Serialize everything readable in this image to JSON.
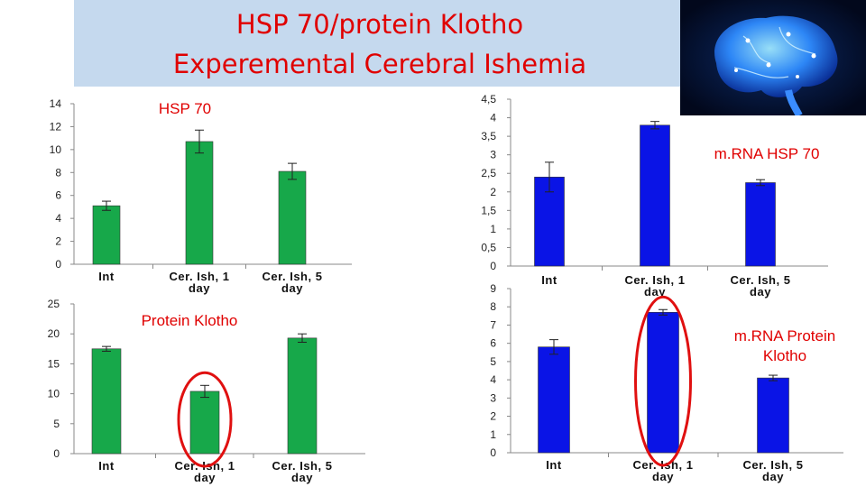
{
  "header": {
    "title_line1": "HSP 70/protein Klotho",
    "title_line2": "Experemental Cerebral Ishemia"
  },
  "image": {
    "icon": "glowing-brain-network-illustration"
  },
  "colors": {
    "green": "#17a84a",
    "blue": "#0a14e6",
    "title": "#e00000",
    "highlight": "#e01010"
  },
  "chart_data": [
    {
      "type": "bar",
      "title": "HSP 70",
      "categories": [
        [
          "Int"
        ],
        [
          "Cer. Ish, 1",
          "day"
        ],
        [
          "Cer. Ish, 5",
          "day"
        ]
      ],
      "values": [
        5.1,
        10.7,
        8.1
      ],
      "errors": [
        0.4,
        1.0,
        0.7
      ],
      "ylim": [
        0,
        14
      ],
      "yticks": [
        "0",
        "2",
        "4",
        "6",
        "8",
        "10",
        "12",
        "14"
      ],
      "ytick_values": [
        0,
        2,
        4,
        6,
        8,
        10,
        12,
        14
      ],
      "color": "green",
      "highlight_index": null
    },
    {
      "type": "bar",
      "title": "Protein Klotho",
      "categories": [
        [
          "Int"
        ],
        [
          "Cer. Ish, 1",
          "day"
        ],
        [
          "Cer. Ish, 5",
          "day"
        ]
      ],
      "values": [
        17.5,
        10.4,
        19.3
      ],
      "errors": [
        0.4,
        1.0,
        0.7
      ],
      "ylim": [
        0,
        25
      ],
      "yticks": [
        "0",
        "5",
        "10",
        "15",
        "20",
        "25"
      ],
      "ytick_values": [
        0,
        5,
        10,
        15,
        20,
        25
      ],
      "color": "green",
      "highlight_index": 1
    },
    {
      "type": "bar",
      "title": "m.RNA HSP 70",
      "categories": [
        [
          "Int"
        ],
        [
          "Cer. Ish, 1",
          "day"
        ],
        [
          "Cer. Ish, 5",
          "day"
        ]
      ],
      "values": [
        2.4,
        3.8,
        2.25
      ],
      "errors": [
        0.4,
        0.1,
        0.08
      ],
      "ylim": [
        0,
        4.5
      ],
      "yticks": [
        "0",
        "0,5",
        "1",
        "1,5",
        "2",
        "2,5",
        "3",
        "3,5",
        "4",
        "4,5"
      ],
      "ytick_values": [
        0,
        0.5,
        1,
        1.5,
        2,
        2.5,
        3,
        3.5,
        4,
        4.5
      ],
      "color": "blue",
      "highlight_index": null
    },
    {
      "type": "bar",
      "title": "m.RNA Protein Klotho",
      "categories": [
        [
          "Int"
        ],
        [
          "Cer. Ish, 1",
          "day"
        ],
        [
          "Cer. Ish, 5",
          "day"
        ]
      ],
      "values": [
        5.8,
        7.7,
        4.1
      ],
      "errors": [
        0.4,
        0.15,
        0.15
      ],
      "ylim": [
        0,
        9
      ],
      "yticks": [
        "0",
        "1",
        "2",
        "3",
        "4",
        "5",
        "6",
        "7",
        "8",
        "9"
      ],
      "ytick_values": [
        0,
        1,
        2,
        3,
        4,
        5,
        6,
        7,
        8,
        9
      ],
      "color": "blue",
      "highlight_index": 1
    }
  ]
}
